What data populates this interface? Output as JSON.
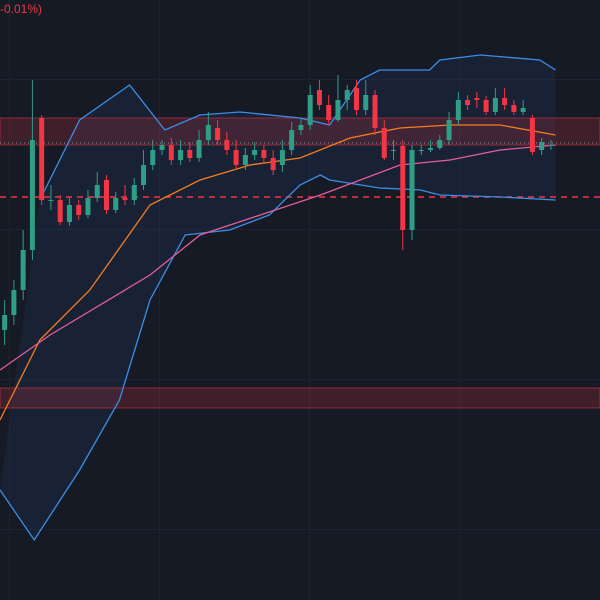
{
  "chart_data": {
    "type": "candlestick",
    "header": "-0.01%)",
    "xlim": [
      -0.5,
      64.3
    ],
    "ylim": [
      0,
      600
    ],
    "up_color": "#2f9e86",
    "down_color": "#f23645",
    "candles": {
      "x": [
        0,
        1,
        2,
        3,
        4,
        5,
        6,
        7,
        8,
        9,
        10,
        11,
        12,
        13,
        14,
        15,
        16,
        17,
        18,
        19,
        20,
        21,
        22,
        23,
        24,
        25,
        26,
        27,
        28,
        29,
        30,
        31,
        32,
        33,
        34,
        35,
        36,
        37,
        38,
        39,
        40,
        41,
        42,
        43,
        44,
        45,
        46,
        47,
        48,
        49,
        50,
        51,
        52,
        53,
        54,
        55,
        56,
        57,
        58,
        59
      ],
      "open": [
        270,
        285,
        310,
        350,
        482,
        400,
        400,
        378,
        395,
        385,
        402,
        420,
        390,
        402,
        400,
        415,
        435,
        450,
        455,
        440,
        450,
        442,
        460,
        472,
        460,
        450,
        435,
        445,
        450,
        442,
        435,
        450,
        470,
        475,
        510,
        495,
        480,
        500,
        512,
        490,
        505,
        472,
        450,
        454,
        370,
        450,
        450,
        452,
        460,
        480,
        500,
        502,
        500,
        488,
        502,
        495,
        488,
        482,
        450,
        455
      ],
      "high": [
        300,
        320,
        370,
        520,
        485,
        415,
        405,
        402,
        400,
        410,
        428,
        425,
        408,
        415,
        422,
        450,
        460,
        460,
        462,
        460,
        458,
        470,
        488,
        480,
        468,
        460,
        452,
        458,
        455,
        450,
        460,
        478,
        482,
        515,
        520,
        505,
        525,
        515,
        520,
        520,
        510,
        480,
        460,
        460,
        455,
        455,
        460,
        465,
        488,
        508,
        505,
        508,
        504,
        512,
        512,
        500,
        500,
        485,
        462,
        460
      ],
      "low": [
        255,
        275,
        300,
        340,
        395,
        390,
        375,
        374,
        380,
        382,
        398,
        386,
        387,
        395,
        395,
        410,
        430,
        445,
        435,
        435,
        438,
        438,
        455,
        455,
        445,
        430,
        430,
        440,
        438,
        425,
        428,
        445,
        465,
        470,
        490,
        475,
        478,
        490,
        485,
        485,
        465,
        440,
        440,
        350,
        360,
        445,
        448,
        450,
        455,
        475,
        490,
        492,
        485,
        485,
        490,
        485,
        485,
        445,
        445,
        450
      ],
      "close": [
        285,
        310,
        350,
        460,
        400,
        400,
        378,
        395,
        385,
        402,
        415,
        390,
        402,
        400,
        415,
        435,
        450,
        455,
        440,
        450,
        442,
        460,
        475,
        460,
        450,
        435,
        445,
        450,
        442,
        430,
        450,
        470,
        475,
        505,
        495,
        480,
        500,
        510,
        490,
        505,
        472,
        442,
        450,
        370,
        450,
        450,
        452,
        460,
        480,
        500,
        495,
        500,
        488,
        502,
        495,
        488,
        492,
        448,
        458,
        455
      ]
    },
    "series": [
      {
        "color": "#3a8ee6",
        "x": [
          3.8,
          8.1,
          13.5,
          17.3,
          21.1,
          25.4,
          31.9,
          35.1,
          38.4,
          40.5,
          45.9,
          47.0,
          51.4,
          57.8,
          59.5
        ],
        "values": [
          400,
          480,
          515,
          470,
          485,
          488,
          482,
          475,
          520,
          530,
          530,
          540,
          545,
          540,
          530
        ]
      },
      {
        "color": "#3a8ee6",
        "x": [
          -0.5,
          3.2,
          8.1,
          12.4,
          15.7,
          19.5,
          24.3,
          28.6,
          31.9,
          34.1,
          35.1,
          40.5,
          44.9,
          47.0,
          53.5,
          59.5
        ],
        "values": [
          110,
          60,
          130,
          200,
          300,
          365,
          370,
          385,
          415,
          425,
          420,
          412,
          410,
          405,
          403,
          400
        ]
      },
      {
        "color": "#f57c1f",
        "x": [
          -0.5,
          3.8,
          9.2,
          15.7,
          21.1,
          26.5,
          31.9,
          37.3,
          42.7,
          48.1,
          53.5,
          59.5
        ],
        "values": [
          180,
          260,
          310,
          395,
          420,
          435,
          442,
          462,
          472,
          475,
          475,
          465
        ]
      },
      {
        "color": "#e45d9a",
        "x": [
          -0.5,
          4.9,
          15.7,
          21.1,
          27.6,
          34.1,
          42.7,
          48.1,
          53.5,
          59.5
        ],
        "values": [
          230,
          265,
          325,
          365,
          385,
          405,
          435,
          440,
          450,
          455
        ]
      }
    ],
    "zones": [
      {
        "from": 455,
        "to": 482
      },
      {
        "from": 192,
        "to": 212
      }
    ],
    "zone_color": "#f23645",
    "dashed_line": 403,
    "dotted_line": 457
  }
}
